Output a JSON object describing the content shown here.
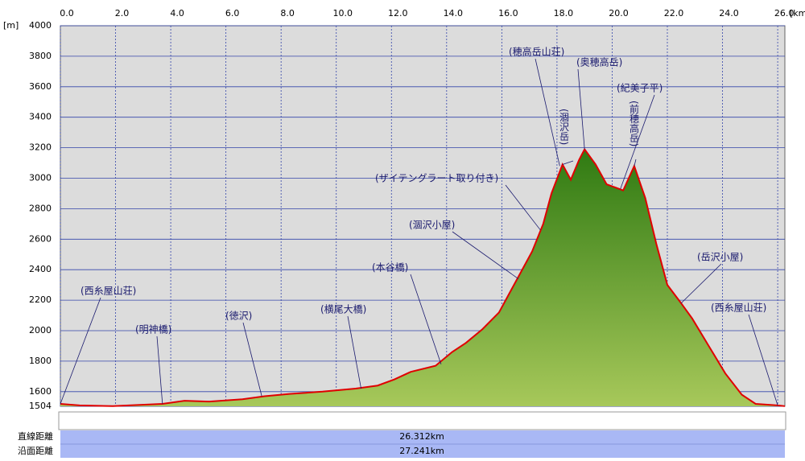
{
  "chart_data": {
    "type": "area",
    "x_unit": "[km]",
    "y_unit": "[m]",
    "xlim": [
      0,
      26.26
    ],
    "ylim": [
      1504,
      4000
    ],
    "xticks": [
      {
        "value": 0,
        "label": "0.0"
      },
      {
        "value": 2,
        "label": "2.0"
      },
      {
        "value": 4,
        "label": "4.0"
      },
      {
        "value": 6,
        "label": "6.0"
      },
      {
        "value": 8,
        "label": "8.0"
      },
      {
        "value": 10,
        "label": "10.0"
      },
      {
        "value": 12,
        "label": "12.0"
      },
      {
        "value": 14,
        "label": "14.0"
      },
      {
        "value": 16,
        "label": "16.0"
      },
      {
        "value": 18,
        "label": "18.0"
      },
      {
        "value": 20,
        "label": "20.0"
      },
      {
        "value": 22,
        "label": "22.0"
      },
      {
        "value": 24,
        "label": "24.0"
      },
      {
        "value": 26,
        "label": "26.0"
      }
    ],
    "yticks": [
      1504,
      1600,
      1800,
      2000,
      2200,
      2400,
      2600,
      2800,
      3000,
      3200,
      3400,
      3600,
      3800,
      4000
    ],
    "grid": true,
    "line_color": "#e00000",
    "fill_color": "#5a9a2a",
    "x": [
      0,
      0.7,
      1.9,
      3.7,
      4.5,
      5.4,
      6.6,
      7.4,
      8.3,
      9.5,
      10.7,
      11.5,
      12.1,
      12.7,
      13.6,
      14.2,
      14.7,
      15.3,
      15.9,
      16.5,
      17.1,
      17.5,
      17.8,
      18.2,
      18.5,
      18.8,
      19.0,
      19.4,
      19.8,
      20.1,
      20.4,
      20.8,
      21.2,
      21.6,
      22.0,
      22.5,
      22.9,
      23.5,
      24.1,
      24.7,
      25.2,
      26.0,
      26.26
    ],
    "values": [
      1520,
      1510,
      1505,
      1520,
      1540,
      1535,
      1550,
      1570,
      1585,
      1600,
      1620,
      1640,
      1680,
      1730,
      1770,
      1860,
      1920,
      2010,
      2120,
      2320,
      2520,
      2700,
      2900,
      3090,
      2990,
      3120,
      3190,
      3090,
      2960,
      2940,
      2920,
      3080,
      2870,
      2570,
      2300,
      2180,
      2080,
      1900,
      1720,
      1580,
      1520,
      1510,
      1505
    ],
    "annotations": [
      {
        "text": "(西糸屋山荘)",
        "x": 0,
        "y": 1520
      },
      {
        "text": "(明神橋)",
        "x": 3.7,
        "y": 1520
      },
      {
        "text": "(徳沢)",
        "x": 7.3,
        "y": 1570
      },
      {
        "text": "(横尾大橋)",
        "x": 10.9,
        "y": 1620
      },
      {
        "text": "(本谷橋)",
        "x": 13.8,
        "y": 1780
      },
      {
        "text": "(涸沢小屋)",
        "x": 16.6,
        "y": 2340
      },
      {
        "text": "(ザイテングラート取り付き)",
        "x": 17.4,
        "y": 2660
      },
      {
        "text": "(穂高岳山荘)",
        "x": 18.1,
        "y": 3080
      },
      {
        "text": "(涸沢岳)",
        "x": 18.2,
        "y": 3090
      },
      {
        "text": "(奥穂高岳)",
        "x": 19.0,
        "y": 3190
      },
      {
        "text": "(紀美子平)",
        "x": 20.3,
        "y": 2930
      },
      {
        "text": "(前穂高岳)",
        "x": 20.8,
        "y": 3080
      },
      {
        "text": "(岳沢小屋)",
        "x": 22.5,
        "y": 2180
      },
      {
        "text": "(西糸屋山荘)",
        "x": 26.0,
        "y": 1510
      }
    ]
  },
  "summary": [
    {
      "label": "直線距離",
      "value": "26.312km"
    },
    {
      "label": "沿面距離",
      "value": "27.241km"
    }
  ]
}
